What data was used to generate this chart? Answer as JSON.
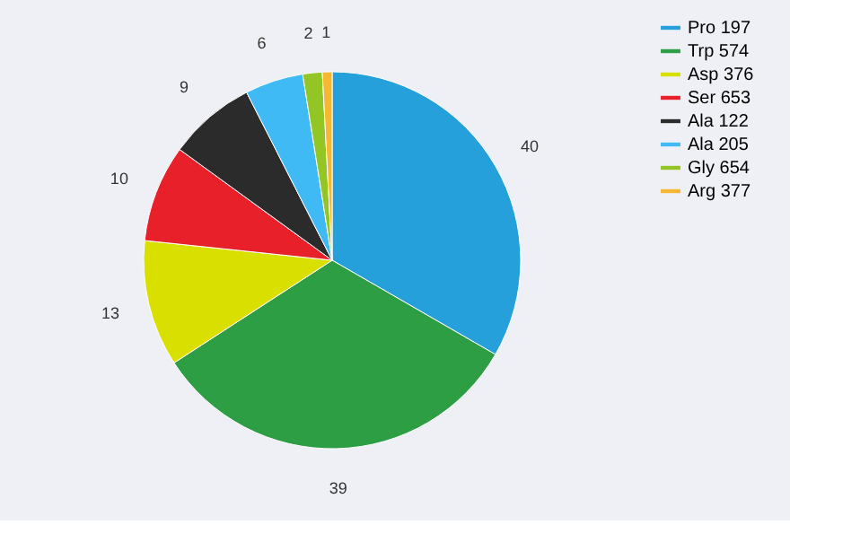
{
  "chart_data": {
    "type": "pie",
    "categories": [
      "Pro 197",
      "Trp 574",
      "Asp 376",
      "Ser 653",
      "Ala 122",
      "Ala 205",
      "Gly 654",
      "Arg 377"
    ],
    "values": [
      40,
      39,
      13,
      10,
      9,
      6,
      2,
      1
    ],
    "colors": [
      "#26a0da",
      "#2e9e45",
      "#d9e000",
      "#e8202a",
      "#2b2b2b",
      "#3fbaf5",
      "#93c524",
      "#f7b733"
    ],
    "data_labels": true,
    "legend": "right"
  }
}
